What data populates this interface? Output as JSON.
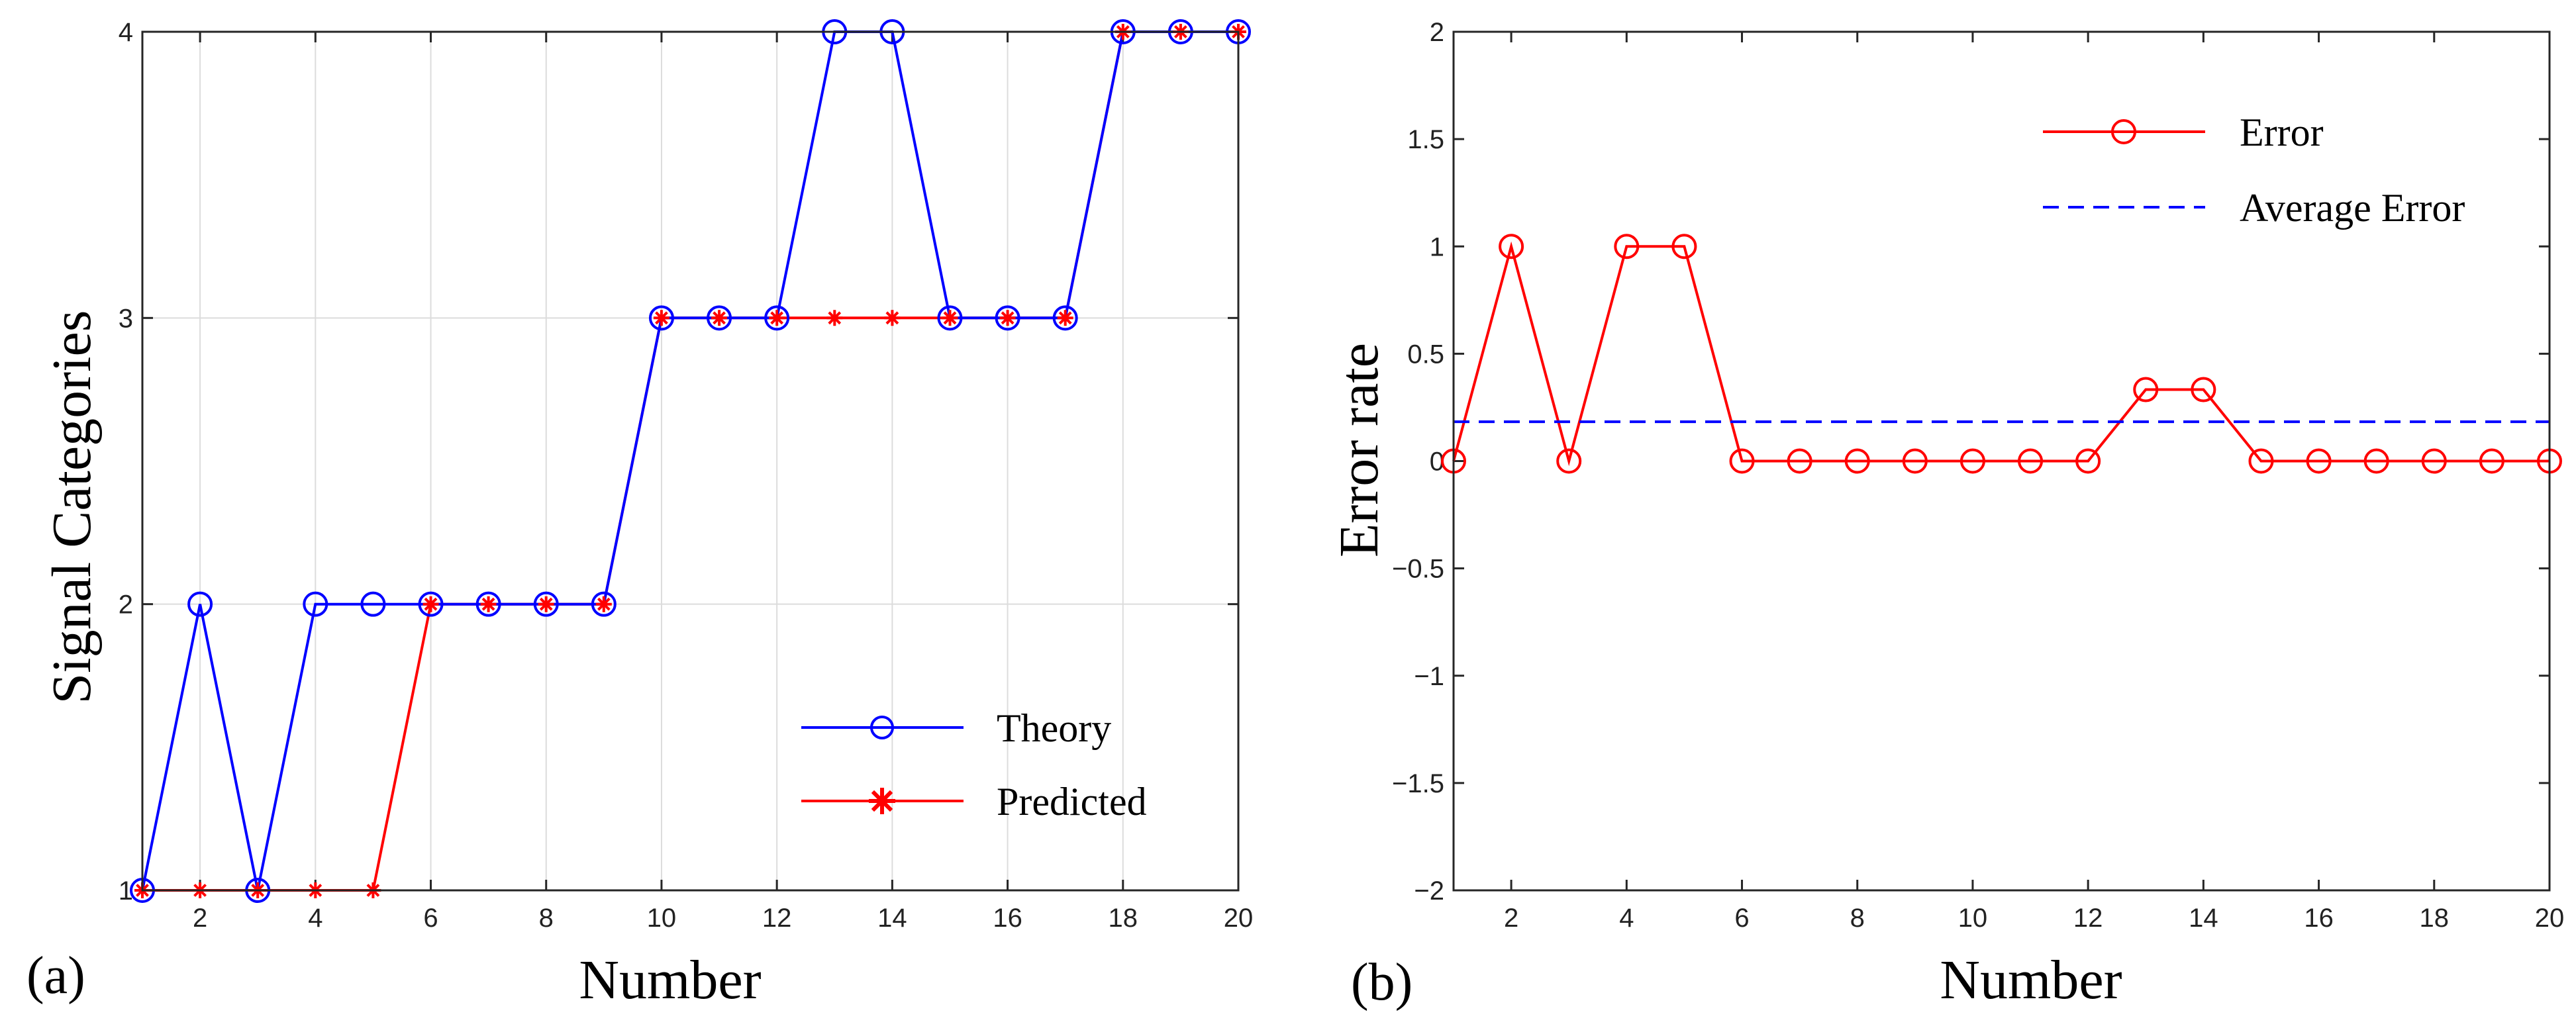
{
  "chart_data": [
    {
      "type": "line",
      "panel_label": "(a)",
      "title": "",
      "xlabel": "Number",
      "ylabel": "Signal Categories",
      "xlim": [
        1,
        20
      ],
      "ylim": [
        1,
        4
      ],
      "xticks": [
        2,
        4,
        6,
        8,
        10,
        12,
        14,
        16,
        18,
        20
      ],
      "xtick_labels": [
        "2",
        "4",
        "6",
        "8",
        "10",
        "12",
        "14",
        "16",
        "18",
        "20"
      ],
      "yticks": [
        1,
        2,
        3,
        4
      ],
      "ytick_labels": [
        "1",
        "2",
        "3",
        "4"
      ],
      "grid": true,
      "legend_position": "bottom-right",
      "x": [
        1,
        2,
        3,
        4,
        5,
        6,
        7,
        8,
        9,
        10,
        11,
        12,
        13,
        14,
        15,
        16,
        17,
        18,
        19,
        20
      ],
      "series": [
        {
          "name": "Theory",
          "color": "#0000ff",
          "marker": "circle",
          "values": [
            1,
            2,
            1,
            2,
            2,
            2,
            2,
            2,
            2,
            3,
            3,
            3,
            4,
            4,
            3,
            3,
            3,
            4,
            4,
            4
          ]
        },
        {
          "name": "Predicted",
          "color": "#ff0000",
          "marker": "asterisk",
          "values": [
            1,
            1,
            1,
            1,
            1,
            2,
            2,
            2,
            2,
            3,
            3,
            3,
            3,
            3,
            3,
            3,
            3,
            4,
            4,
            4
          ]
        }
      ]
    },
    {
      "type": "line",
      "panel_label": "(b)",
      "title": "",
      "xlabel": "Number",
      "ylabel": "Error rate",
      "xlim": [
        1,
        20
      ],
      "ylim": [
        -2,
        2
      ],
      "xticks": [
        2,
        4,
        6,
        8,
        10,
        12,
        14,
        16,
        18,
        20
      ],
      "xtick_labels": [
        "2",
        "4",
        "6",
        "8",
        "10",
        "12",
        "14",
        "16",
        "18",
        "20"
      ],
      "yticks": [
        -2,
        -1.5,
        -1,
        -0.5,
        0,
        0.5,
        1,
        1.5,
        2
      ],
      "ytick_labels": [
        "−2",
        "−1.5",
        "−1",
        "−0.5",
        "0",
        "0.5",
        "1",
        "1.5",
        "2"
      ],
      "grid": false,
      "legend_position": "top-right",
      "x": [
        1,
        2,
        3,
        4,
        5,
        6,
        7,
        8,
        9,
        10,
        11,
        12,
        13,
        14,
        15,
        16,
        17,
        18,
        19,
        20
      ],
      "series": [
        {
          "name": "Error",
          "color": "#ff0000",
          "marker": "circle",
          "values": [
            0,
            1,
            0,
            1,
            1,
            0,
            0,
            0,
            0,
            0,
            0,
            0,
            0.333,
            0.333,
            0,
            0,
            0,
            0,
            0,
            0
          ]
        },
        {
          "name": "Average Error",
          "color": "#0000ff",
          "marker": "none",
          "line_style": "dashed",
          "constant": 0.183
        }
      ]
    }
  ]
}
